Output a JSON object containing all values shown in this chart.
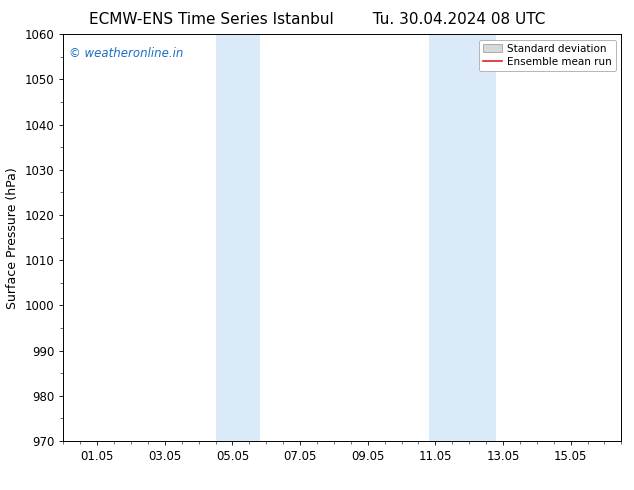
{
  "title_left": "ECMW-ENS Time Series Istanbul",
  "title_right": "Tu. 30.04.2024 08 UTC",
  "ylabel": "Surface Pressure (hPa)",
  "ylim": [
    970,
    1060
  ],
  "yticks": [
    970,
    980,
    990,
    1000,
    1010,
    1020,
    1030,
    1040,
    1050,
    1060
  ],
  "xtick_labels": [
    "01.05",
    "03.05",
    "05.05",
    "07.05",
    "09.05",
    "11.05",
    "13.05",
    "15.05"
  ],
  "xtick_positions": [
    1,
    3,
    5,
    7,
    9,
    11,
    13,
    15
  ],
  "xlim": [
    0,
    16
  ],
  "shaded_regions": [
    {
      "x_start": 4.5,
      "x_end": 5.8
    },
    {
      "x_start": 10.8,
      "x_end": 12.8
    }
  ],
  "shade_color": "#daeaf8",
  "background_color": "#ffffff",
  "watermark_text": "© weatheronline.in",
  "watermark_color": "#1a6fc4",
  "legend_std_label": "Standard deviation",
  "legend_mean_label": "Ensemble mean run",
  "legend_std_facecolor": "#d8d8d8",
  "legend_std_edgecolor": "#aaaaaa",
  "legend_mean_color": "#dd2222",
  "title_fontsize": 11,
  "ylabel_fontsize": 9,
  "tick_fontsize": 8.5,
  "watermark_fontsize": 8.5,
  "legend_fontsize": 7.5
}
